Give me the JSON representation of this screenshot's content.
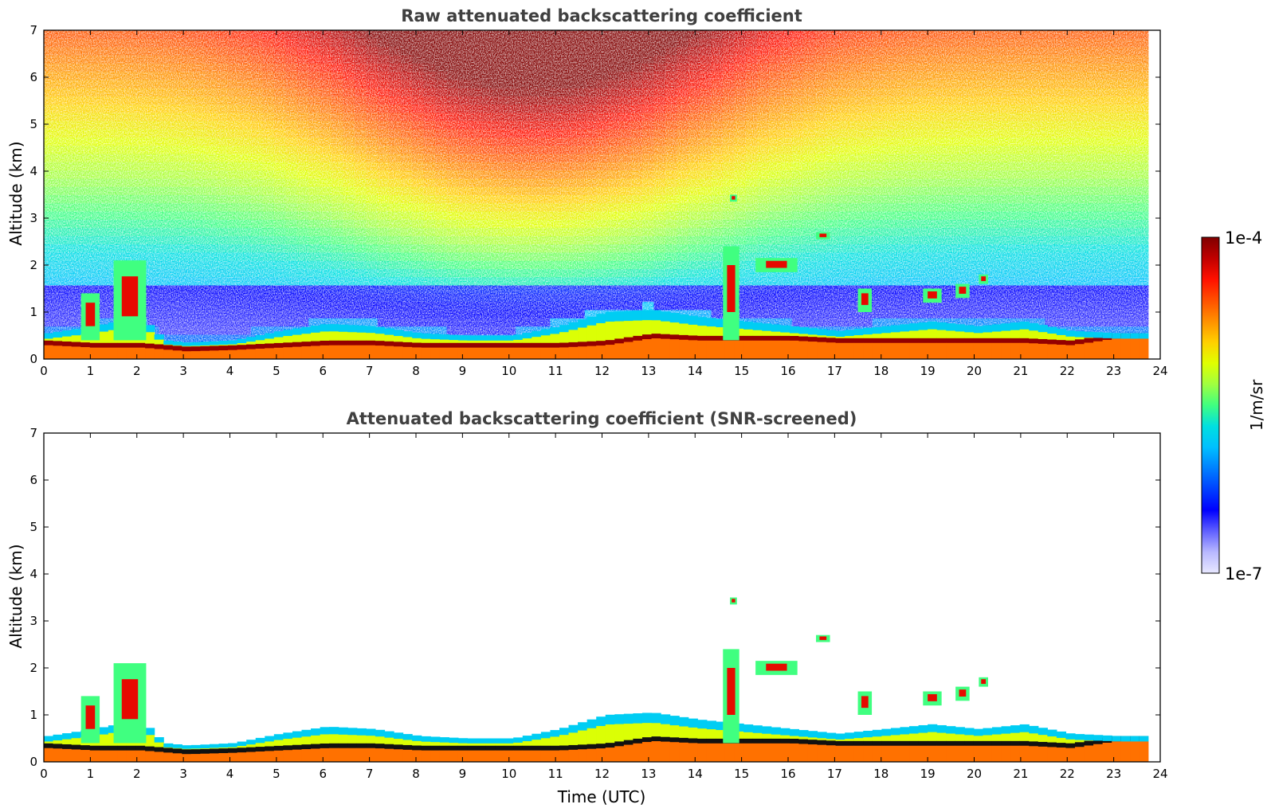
{
  "chart_data": [
    {
      "type": "heatmap",
      "title": "Raw attenuated backscattering coefficient",
      "xlabel": "",
      "ylabel": "Altitude (km)",
      "xlim": [
        0,
        24
      ],
      "ylim": [
        0,
        7
      ],
      "xticks": [
        "0",
        "1",
        "2",
        "3",
        "4",
        "5",
        "6",
        "7",
        "8",
        "9",
        "10",
        "11",
        "12",
        "13",
        "14",
        "15",
        "16",
        "17",
        "18",
        "19",
        "20",
        "21",
        "22",
        "23",
        "24"
      ],
      "yticks": [
        "0",
        "1",
        "2",
        "3",
        "4",
        "5",
        "6",
        "7"
      ],
      "data_end_hour": 23.75,
      "layers": [
        {
          "feature": "boundary-layer-top",
          "t": [
            0,
            1,
            2,
            2.5,
            3,
            4,
            5,
            6,
            7,
            8,
            9,
            10,
            11,
            12,
            13,
            14,
            15,
            16,
            17,
            18,
            19,
            20,
            21,
            22,
            23,
            23.75
          ],
          "z": [
            0.55,
            0.7,
            0.9,
            0.4,
            0.35,
            0.4,
            0.6,
            0.75,
            0.7,
            0.55,
            0.5,
            0.5,
            0.7,
            1.0,
            1.05,
            0.9,
            0.8,
            0.7,
            0.6,
            0.7,
            0.8,
            0.7,
            0.8,
            0.6,
            0.55,
            0.55
          ]
        },
        {
          "feature": "aerosol-peak-layer",
          "t": [
            0,
            1,
            2,
            3,
            4,
            5,
            6,
            7,
            8,
            9,
            10,
            11,
            12,
            13,
            14,
            15,
            16,
            17,
            18,
            19,
            20,
            21,
            22,
            23,
            23.75
          ],
          "z": [
            0.35,
            0.3,
            0.3,
            0.22,
            0.25,
            0.3,
            0.35,
            0.35,
            0.3,
            0.3,
            0.3,
            0.3,
            0.35,
            0.5,
            0.45,
            0.45,
            0.45,
            0.4,
            0.4,
            0.4,
            0.4,
            0.4,
            0.35,
            0.5,
            0.5
          ]
        }
      ]
    },
    {
      "type": "heatmap",
      "title": "Attenuated backscattering coefficient (SNR-screened)",
      "xlabel": "Time (UTC)",
      "ylabel": "Altitude (km)",
      "xlim": [
        0,
        24
      ],
      "ylim": [
        0,
        7
      ],
      "xticks": [
        "0",
        "1",
        "2",
        "3",
        "4",
        "5",
        "6",
        "7",
        "8",
        "9",
        "10",
        "11",
        "12",
        "13",
        "14",
        "15",
        "16",
        "17",
        "18",
        "19",
        "20",
        "21",
        "22",
        "23",
        "24"
      ],
      "yticks": [
        "0",
        "1",
        "2",
        "3",
        "4",
        "5",
        "6",
        "7"
      ],
      "data_end_hour": 23.75,
      "layers": [
        {
          "feature": "boundary-layer-top",
          "t": [
            0,
            1,
            2,
            2.5,
            3,
            4,
            5,
            6,
            7,
            8,
            9,
            10,
            11,
            12,
            13,
            14,
            15,
            16,
            17,
            18,
            19,
            20,
            21,
            22,
            23,
            23.75
          ],
          "z": [
            0.55,
            0.7,
            0.9,
            0.4,
            0.35,
            0.4,
            0.6,
            0.75,
            0.7,
            0.55,
            0.5,
            0.5,
            0.7,
            1.0,
            1.05,
            0.9,
            0.8,
            0.7,
            0.6,
            0.7,
            0.8,
            0.7,
            0.8,
            0.6,
            0.55,
            0.55
          ]
        },
        {
          "feature": "aerosol-peak-layer",
          "t": [
            0,
            1,
            2,
            3,
            4,
            5,
            6,
            7,
            8,
            9,
            10,
            11,
            12,
            13,
            14,
            15,
            16,
            17,
            18,
            19,
            20,
            21,
            22,
            23,
            23.75
          ],
          "z": [
            0.35,
            0.3,
            0.3,
            0.22,
            0.25,
            0.3,
            0.35,
            0.35,
            0.3,
            0.3,
            0.3,
            0.3,
            0.35,
            0.5,
            0.45,
            0.45,
            0.45,
            0.4,
            0.4,
            0.4,
            0.4,
            0.4,
            0.35,
            0.5,
            0.5
          ]
        }
      ],
      "cloud_patches": [
        {
          "t": [
            0.8,
            1.2
          ],
          "z": [
            0.4,
            1.4
          ]
        },
        {
          "t": [
            1.5,
            2.2
          ],
          "z": [
            0.4,
            2.1
          ]
        },
        {
          "t": [
            14.6,
            14.95
          ],
          "z": [
            0.4,
            2.4
          ]
        },
        {
          "t": [
            14.75,
            14.9
          ],
          "z": [
            3.35,
            3.5
          ]
        },
        {
          "t": [
            15.3,
            16.2
          ],
          "z": [
            1.85,
            2.15
          ]
        },
        {
          "t": [
            16.6,
            16.9
          ],
          "z": [
            2.55,
            2.7
          ]
        },
        {
          "t": [
            17.5,
            17.8
          ],
          "z": [
            1.0,
            1.5
          ]
        },
        {
          "t": [
            18.9,
            19.3
          ],
          "z": [
            1.2,
            1.5
          ]
        },
        {
          "t": [
            19.6,
            19.9
          ],
          "z": [
            1.3,
            1.6
          ]
        },
        {
          "t": [
            20.1,
            20.3
          ],
          "z": [
            1.6,
            1.8
          ]
        }
      ]
    }
  ],
  "colorbar": {
    "label": "1/m/sr",
    "max_label": "1e-4",
    "min_label": "1e-7",
    "colors": [
      "#e8e8ff",
      "#b8b8ff",
      "#6060ff",
      "#0000ff",
      "#0040ff",
      "#0080ff",
      "#00c0ff",
      "#00e0e0",
      "#40ff80",
      "#a0ff40",
      "#e0ff00",
      "#ffd000",
      "#ff9000",
      "#ff5000",
      "#ff1000",
      "#c00000",
      "#800000"
    ]
  }
}
